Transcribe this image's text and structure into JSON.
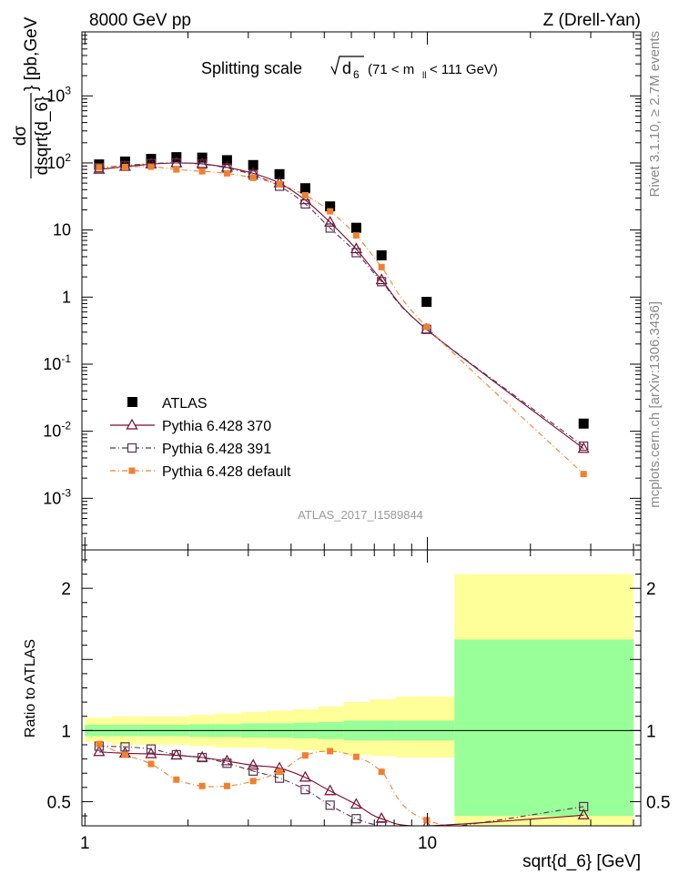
{
  "header": {
    "left": "8000 GeV pp",
    "right": "Z (Drell-Yan)"
  },
  "side_labels": {
    "rivet": "Rivet 3.1.10, ≥ 2.7M events",
    "mcplots": "mcplots.cern.ch [arXiv:1306.3436]"
  },
  "colors": {
    "atlas": "#000000",
    "p370": "#7a0a2a",
    "p391": "#5a3050",
    "pdefault": "#f08030",
    "band_inner": "#99ff99",
    "band_outer": "#ffff99"
  },
  "chart_data": [
    {
      "type": "scatter",
      "panel": "main",
      "title": "Splitting scale  √d6 (71 < mll < 111 GeV)",
      "title_parts": {
        "main": "Splitting scale",
        "sym": "d",
        "sym_sub": "6",
        "range": "(71 < m",
        "range_sub": "ll",
        "range_end": " < 111 GeV)"
      },
      "ylabel": "dσ/dsqrt{d_6} [pb,GeV⁻¹]",
      "ylabel_parts": {
        "num": "dσ",
        "den": "dsqrt{d_6}",
        "unit_open": "} [pb,GeV",
        "unit_exp": "-1",
        "unit_close": "]"
      },
      "xscale": "log",
      "yscale": "log",
      "xlim": [
        0.98,
        42
      ],
      "ylim": [
        0.00017,
        9000
      ],
      "yticks": [
        {
          "v": 0.001,
          "b": "10",
          "e": "-3"
        },
        {
          "v": 0.01,
          "b": "10",
          "e": "-2"
        },
        {
          "v": 0.1,
          "b": "10",
          "e": "-1"
        },
        {
          "v": 1,
          "b": "1",
          "e": ""
        },
        {
          "v": 10,
          "b": "10",
          "e": ""
        },
        {
          "v": 100,
          "b": "10",
          "e": "2"
        },
        {
          "v": 1000,
          "b": "10",
          "e": "3"
        }
      ],
      "watermark": "ATLAS_2017_I1589844",
      "legend_position": "bottom-left",
      "series": [
        {
          "name": "ATLAS",
          "key": "atlas",
          "x": [
            1.1,
            1.31,
            1.56,
            1.85,
            2.2,
            2.6,
            3.1,
            3.7,
            4.4,
            5.2,
            6.2,
            7.35,
            9.95,
            28.6
          ],
          "y": [
            95,
            105,
            115,
            122,
            120,
            110,
            93,
            68,
            42,
            22.5,
            10.8,
            4.2,
            0.85,
            0.013
          ]
        },
        {
          "name": "Pythia 6.428 370",
          "key": "p370",
          "x": [
            1.1,
            1.31,
            1.56,
            1.85,
            2.2,
            2.6,
            3.1,
            3.7,
            4.4,
            5.2,
            6.2,
            7.35,
            9.95,
            28.6
          ],
          "y": [
            80,
            88,
            96,
            100,
            97,
            86,
            70,
            50,
            28,
            13,
            5.2,
            1.8,
            0.33,
            0.0055
          ]
        },
        {
          "name": "Pythia 6.428 391",
          "key": "p391",
          "x": [
            1.1,
            1.31,
            1.56,
            1.85,
            2.2,
            2.6,
            3.1,
            3.7,
            4.4,
            5.2,
            6.2,
            7.35,
            9.95,
            28.6
          ],
          "y": [
            85,
            91,
            98,
            100,
            96,
            84,
            66,
            45,
            24.5,
            10.7,
            4.6,
            1.7,
            0.33,
            0.006
          ]
        },
        {
          "name": "Pythia 6.428 default",
          "key": "pdefault",
          "x": [
            1.1,
            1.31,
            1.56,
            1.85,
            2.2,
            2.6,
            3.1,
            3.7,
            4.4,
            5.2,
            6.2,
            7.35,
            9.95,
            28.6
          ],
          "y": [
            86,
            87,
            88,
            80,
            75,
            70,
            60,
            48,
            33,
            19,
            8.3,
            2.8,
            0.36,
            0.0023
          ]
        }
      ]
    },
    {
      "type": "line",
      "panel": "ratio",
      "ylabel": "Ratio to ATLAS",
      "xlabel": "sqrt{d_6} [GeV]",
      "xscale": "log",
      "xlim": [
        0.98,
        42
      ],
      "ylim": [
        0.33,
        2.27
      ],
      "xticks": [
        {
          "v": 1,
          "label": "1"
        },
        {
          "v": 10,
          "label": "10"
        }
      ],
      "yticks": [
        {
          "v": 0.5,
          "label": "0.5"
        },
        {
          "v": 1,
          "label": "1"
        },
        {
          "v": 2,
          "label": "2"
        }
      ],
      "bands": {
        "edges": [
          1.0,
          1.2,
          1.43,
          1.7,
          2.02,
          2.4,
          2.85,
          3.4,
          4.05,
          4.8,
          5.7,
          6.8,
          8.1,
          12.0,
          40.0
        ],
        "inner_lo": [
          0.96,
          0.96,
          0.96,
          0.96,
          0.955,
          0.955,
          0.95,
          0.95,
          0.945,
          0.94,
          0.93,
          0.93,
          0.93,
          0.4
        ],
        "inner_hi": [
          1.04,
          1.04,
          1.04,
          1.04,
          1.045,
          1.045,
          1.05,
          1.05,
          1.055,
          1.06,
          1.07,
          1.07,
          1.07,
          1.64
        ],
        "outer_lo": [
          0.92,
          0.9,
          0.9,
          0.9,
          0.89,
          0.88,
          0.88,
          0.87,
          0.86,
          0.85,
          0.83,
          0.82,
          0.81,
          0.0
        ],
        "outer_hi": [
          1.09,
          1.1,
          1.1,
          1.1,
          1.11,
          1.12,
          1.13,
          1.14,
          1.15,
          1.17,
          1.2,
          1.22,
          1.24,
          2.1
        ]
      },
      "series": [
        {
          "name": "Pythia 6.428 370",
          "key": "p370",
          "x": [
            1.1,
            1.31,
            1.56,
            1.85,
            2.2,
            2.6,
            3.1,
            3.7,
            4.4,
            5.2,
            6.2,
            7.35,
            9.95,
            28.6
          ],
          "y": [
            0.85,
            0.84,
            0.835,
            0.825,
            0.81,
            0.785,
            0.755,
            0.735,
            0.67,
            0.575,
            0.48,
            0.38,
            0.33,
            0.405
          ]
        },
        {
          "name": "Pythia 6.428 391",
          "key": "p391",
          "x": [
            1.1,
            1.31,
            1.56,
            1.85,
            2.2,
            2.6,
            3.1,
            3.7,
            4.4,
            5.2,
            6.2,
            7.35,
            9.95,
            28.6
          ],
          "y": [
            0.89,
            0.885,
            0.87,
            0.83,
            0.81,
            0.77,
            0.715,
            0.665,
            0.585,
            0.475,
            0.38,
            0.33,
            0.3,
            0.465
          ]
        },
        {
          "name": "Pythia 6.428 default",
          "key": "pdefault",
          "x": [
            1.1,
            1.31,
            1.56,
            1.85,
            2.2,
            2.6,
            3.1,
            3.7,
            4.4,
            5.2,
            6.2,
            7.35,
            9.95,
            28.6
          ],
          "y": [
            0.905,
            0.83,
            0.765,
            0.655,
            0.61,
            0.61,
            0.645,
            0.71,
            0.825,
            0.855,
            0.815,
            0.71,
            0.37,
            0.18
          ]
        }
      ]
    }
  ]
}
